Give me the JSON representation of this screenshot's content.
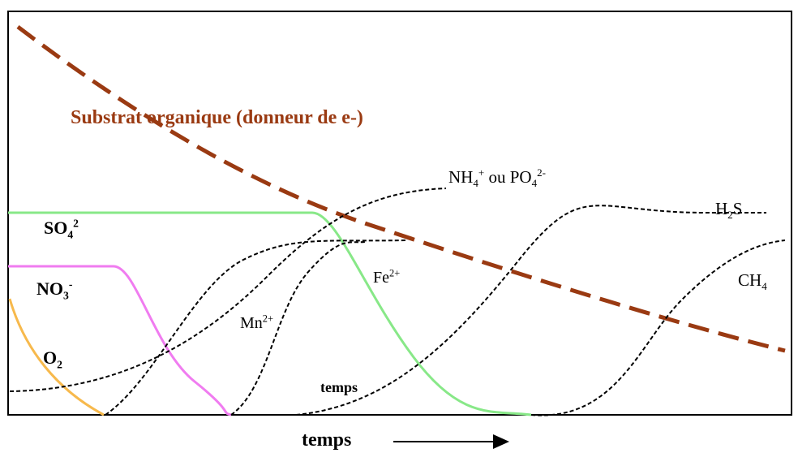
{
  "title": "Substrat organique (donneur de e-)",
  "x_axis_label": "temps",
  "inner_time_label": "temps",
  "species": {
    "so4": {
      "base": "SO",
      "sub": "4",
      "sup": "2"
    },
    "no3": {
      "base": "NO",
      "sub": "3",
      "sup": "-"
    },
    "o2": {
      "base": "O",
      "sub": "2"
    },
    "mn": {
      "base": "Mn",
      "sup": "2+"
    },
    "fe": {
      "base": "Fe",
      "sup": "2+"
    },
    "nh4_po4": {
      "nh": "NH",
      "nh_sub": "4",
      "nh_sup": "+",
      "mid": " ou PO",
      "po_sub": "4",
      "po_sup": "2-"
    },
    "h2s": {
      "h": "H",
      "sub": "2",
      "s": "S"
    },
    "ch4": {
      "base": "CH",
      "sub": "4"
    }
  },
  "colors": {
    "substrat": "#9a3a12",
    "so4": "#88e888",
    "no3": "#f07cf0",
    "o2": "#f7b94c",
    "products": "#000000"
  }
}
